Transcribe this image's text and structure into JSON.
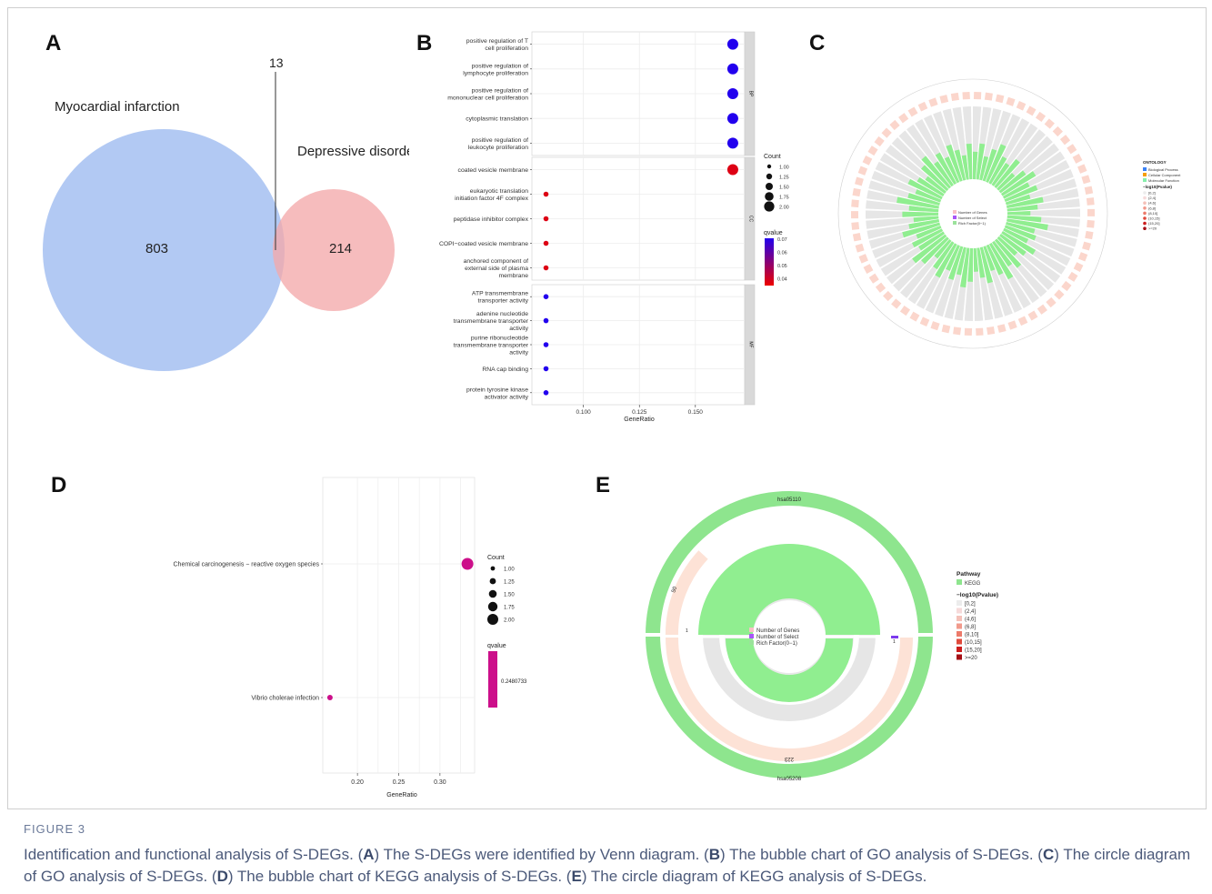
{
  "panels": {
    "a": {
      "letter": "A"
    },
    "b": {
      "letter": "B"
    },
    "c": {
      "letter": "C"
    },
    "d": {
      "letter": "D"
    },
    "e": {
      "letter": "E"
    }
  },
  "venn": {
    "set_a_label": "Myocardial infarction",
    "set_b_label": "Depressive disorder",
    "only_a": "803",
    "only_b": "214",
    "overlap": "13",
    "colors": {
      "a": "#aec6f2",
      "b": "#f4a9aa"
    }
  },
  "chart_data": [
    {
      "type": "scatter",
      "panel": "B",
      "xlabel": "GeneRatio",
      "xticks": [
        "0.100",
        "0.125",
        "0.150"
      ],
      "xlim": [
        0.077,
        0.172
      ],
      "facets": [
        {
          "label": "BP",
          "terms": [
            {
              "term": [
                "positive regulation of T",
                "cell proliferation"
              ],
              "ratio": 0.1667,
              "count": 2,
              "qvalue": 0.07
            },
            {
              "term": [
                "positive regulation of",
                "lymphocyte proliferation"
              ],
              "ratio": 0.1667,
              "count": 2,
              "qvalue": 0.07
            },
            {
              "term": [
                "positive regulation of",
                "mononuclear cell proliferation"
              ],
              "ratio": 0.1667,
              "count": 2,
              "qvalue": 0.07
            },
            {
              "term": [
                "cytoplasmic translation"
              ],
              "ratio": 0.1667,
              "count": 2,
              "qvalue": 0.07
            },
            {
              "term": [
                "positive regulation of",
                "leukocyte proliferation"
              ],
              "ratio": 0.1667,
              "count": 2,
              "qvalue": 0.07
            }
          ]
        },
        {
          "label": "CC",
          "terms": [
            {
              "term": [
                "coated vesicle membrane"
              ],
              "ratio": 0.1667,
              "count": 2,
              "qvalue": 0.038
            },
            {
              "term": [
                "eukaryotic translation",
                "initiation factor 4F complex"
              ],
              "ratio": 0.0833,
              "count": 1,
              "qvalue": 0.038
            },
            {
              "term": [
                "peptidase inhibitor complex"
              ],
              "ratio": 0.0833,
              "count": 1,
              "qvalue": 0.038
            },
            {
              "term": [
                "COPI−coated vesicle membrane"
              ],
              "ratio": 0.0833,
              "count": 1,
              "qvalue": 0.038
            },
            {
              "term": [
                "anchored component of",
                "external side of plasma",
                "membrane"
              ],
              "ratio": 0.0833,
              "count": 1,
              "qvalue": 0.038
            }
          ]
        },
        {
          "label": "MF",
          "terms": [
            {
              "term": [
                "ATP transmembrane",
                "transporter activity"
              ],
              "ratio": 0.0833,
              "count": 1,
              "qvalue": 0.07
            },
            {
              "term": [
                "adenine nucleotide",
                "transmembrane transporter",
                "activity"
              ],
              "ratio": 0.0833,
              "count": 1,
              "qvalue": 0.07
            },
            {
              "term": [
                "purine ribonucleotide",
                "transmembrane transporter",
                "activity"
              ],
              "ratio": 0.0833,
              "count": 1,
              "qvalue": 0.07
            },
            {
              "term": [
                "RNA cap binding"
              ],
              "ratio": 0.0833,
              "count": 1,
              "qvalue": 0.07
            },
            {
              "term": [
                "protein tyrosine kinase",
                "activator activity"
              ],
              "ratio": 0.0833,
              "count": 1,
              "qvalue": 0.07
            }
          ]
        }
      ],
      "size_legend": {
        "title": "Count",
        "values": [
          "1.00",
          "1.25",
          "1.50",
          "1.75",
          "2.00"
        ]
      },
      "color_legend": {
        "title": "qvalue",
        "ticks": [
          "0.07",
          "0.06",
          "0.05",
          "0.04"
        ],
        "low_color": "#ee0000",
        "high_color": "#2200ee"
      }
    },
    {
      "type": "scatter",
      "panel": "D",
      "xlabel": "GeneRatio",
      "xticks": [
        "0.20",
        "0.25",
        "0.30"
      ],
      "xlim": [
        0.158,
        0.342
      ],
      "terms": [
        {
          "term": "Chemical carcinogenesis − reactive oxygen species",
          "ratio": 0.3333,
          "count": 2,
          "qvalue": 0.2480733
        },
        {
          "term": "Vibrio cholerae infection",
          "ratio": 0.1667,
          "count": 1,
          "qvalue": 0.2480733
        }
      ],
      "size_legend": {
        "title": "Count",
        "values": [
          "1.00",
          "1.25",
          "1.50",
          "1.75",
          "2.00"
        ]
      },
      "color_legend": {
        "title": "qvalue",
        "ticks": [
          "0.2480733"
        ],
        "color": "#cc0f8a"
      }
    }
  ],
  "circos_go": {
    "legend_ontology_title": "ONTOLOGY",
    "ontology_items": [
      "Biological Process",
      "Cellular Component",
      "Molecular Function"
    ],
    "pvalue_title": "−log10(Pvalue)",
    "pvalue_items": [
      "[0,2]",
      "(2,4]",
      "(4,6]",
      "(6,8]",
      "(8,10]",
      "(10,15]",
      "(15,20]",
      ">=20"
    ],
    "center_legend": [
      "Number of Genes",
      "Number of Select",
      "Rich Factor(0−1)"
    ]
  },
  "circos_kegg": {
    "pathway_title": "Pathway",
    "pathway_item": "KEGG",
    "pvalue_title": "−log10(Pvalue)",
    "pvalue_items": [
      "[0,2]",
      "(2,4]",
      "(4,6]",
      "(6,8]",
      "(8,10]",
      "(10,15]",
      "(15,20]",
      ">=20"
    ],
    "center_legend": [
      "Number of Genes",
      "Number of Select",
      "Rich Factor(0−1)"
    ],
    "top_id": "hsa05110",
    "bottom_id": "hsa05208",
    "genes_top": "50",
    "genes_bottom": "223",
    "select_top": "1",
    "select_bottom": "1"
  },
  "caption": {
    "label": "FIGURE 3",
    "parts": [
      "Identification and functional analysis of S-DEGs. (",
      "A",
      ") The S-DEGs were identified by Venn diagram. (",
      "B",
      ") The bubble chart of GO analysis of S-DEGs. (",
      "C",
      ") The circle diagram of GO analysis of S-DEGs. (",
      "D",
      ") The bubble chart of KEGG analysis of S-DEGs. (",
      "E",
      ") The circle diagram of KEGG analysis of S-DEGs."
    ]
  }
}
